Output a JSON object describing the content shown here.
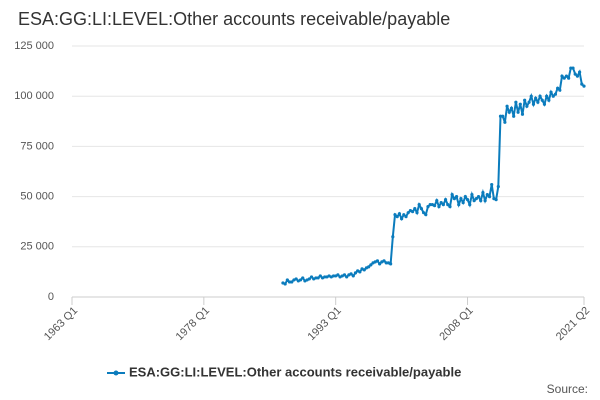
{
  "chart_data": {
    "type": "line",
    "title": "ESA:GG:LI:LEVEL:Other accounts receivable/payable",
    "source": "Source:",
    "x": [
      1987,
      1987.25,
      1987.5,
      1987.75,
      1988,
      1988.25,
      1988.5,
      1988.75,
      1989,
      1989.25,
      1989.5,
      1989.75,
      1990,
      1990.25,
      1990.5,
      1990.75,
      1991,
      1991.25,
      1991.5,
      1991.75,
      1992,
      1992.25,
      1992.5,
      1992.75,
      1993,
      1993.25,
      1993.5,
      1993.75,
      1994,
      1994.25,
      1994.5,
      1994.75,
      1995,
      1995.25,
      1995.5,
      1995.75,
      1996,
      1996.25,
      1996.5,
      1996.75,
      1997,
      1997.25,
      1997.5,
      1997.75,
      1998,
      1998.25,
      1998.5,
      1998.75,
      1999,
      1999.25,
      1999.5,
      1999.75,
      2000,
      2000.25,
      2000.5,
      2000.75,
      2001,
      2001.25,
      2001.5,
      2001.75,
      2002,
      2002.25,
      2002.5,
      2002.75,
      2003,
      2003.25,
      2003.5,
      2003.75,
      2004,
      2004.25,
      2004.5,
      2004.75,
      2005,
      2005.25,
      2005.5,
      2005.75,
      2006,
      2006.25,
      2006.5,
      2006.75,
      2007,
      2007.25,
      2007.5,
      2007.75,
      2008,
      2008.25,
      2008.5,
      2008.75,
      2009,
      2009.25,
      2009.5,
      2009.75,
      2010,
      2010.25,
      2010.5,
      2010.75,
      2011,
      2011.25,
      2011.5,
      2011.75,
      2012,
      2012.25,
      2012.5,
      2012.75,
      2013,
      2013.25,
      2013.5,
      2013.75,
      2014,
      2014.25,
      2014.5,
      2014.75,
      2015,
      2015.25,
      2015.5,
      2015.75,
      2016,
      2016.25,
      2016.5,
      2016.75,
      2017,
      2017.25,
      2017.5,
      2017.75,
      2018,
      2018.25,
      2018.5,
      2018.75,
      2019,
      2019.25,
      2019.5,
      2019.75,
      2020,
      2020.25,
      2020.5,
      2020.75,
      2021,
      2021.25
    ],
    "series": [
      {
        "name": "ESA:GG:LI:LEVEL:Other accounts receivable/payable",
        "color": "#0b7cbd",
        "values": [
          7000,
          6500,
          8500,
          7500,
          7500,
          8500,
          9000,
          8000,
          8500,
          9500,
          8000,
          8500,
          9000,
          10000,
          9000,
          9500,
          9500,
          10500,
          9500,
          10000,
          10000,
          10500,
          10000,
          10500,
          10500,
          11000,
          10000,
          10500,
          11000,
          10000,
          11000,
          11500,
          10500,
          12000,
          13000,
          12500,
          14000,
          13500,
          14500,
          15000,
          16000,
          17000,
          17500,
          18000,
          16500,
          17500,
          18000,
          17000,
          17000,
          16500,
          30000,
          41000,
          40000,
          41500,
          39000,
          41000,
          40000,
          42000,
          43000,
          42500,
          44000,
          42000,
          46000,
          44000,
          42000,
          41000,
          45000,
          46000,
          46000,
          45500,
          48000,
          45000,
          47000,
          46000,
          48500,
          46000,
          45000,
          51000,
          49000,
          50000,
          46000,
          49000,
          47000,
          50000,
          48500,
          46000,
          51000,
          48000,
          49000,
          50000,
          48000,
          52000,
          48000,
          51000,
          50000,
          56000,
          49000,
          48500,
          55000,
          90000,
          90000,
          87000,
          95000,
          92000,
          94000,
          90000,
          97000,
          92000,
          96000,
          91000,
          98000,
          95000,
          97000,
          100000,
          96000,
          99000,
          97000,
          100000,
          98000,
          96000,
          100000,
          98000,
          102000,
          100000,
          101000,
          104000,
          103000,
          110000,
          109000,
          110000,
          109000,
          114000,
          114000,
          111000,
          110000,
          112000,
          106000,
          105000
        ]
      }
    ],
    "xlim": [
      1963,
      2021.25
    ],
    "xticks": [
      {
        "value": 1963,
        "label": "1963 Q1"
      },
      {
        "value": 1978,
        "label": "1978 Q1"
      },
      {
        "value": 1993,
        "label": "1993 Q1"
      },
      {
        "value": 2008,
        "label": "2008 Q1"
      },
      {
        "value": 2021.25,
        "label": "2021 Q2"
      }
    ],
    "ylim": [
      0,
      125000
    ],
    "yticks": [
      {
        "value": 0,
        "label": "0"
      },
      {
        "value": 25000,
        "label": "25 000"
      },
      {
        "value": 50000,
        "label": "50 000"
      },
      {
        "value": 75000,
        "label": "75 000"
      },
      {
        "value": 100000,
        "label": "100 000"
      },
      {
        "value": 125000,
        "label": "125 000"
      }
    ],
    "grid": true
  }
}
